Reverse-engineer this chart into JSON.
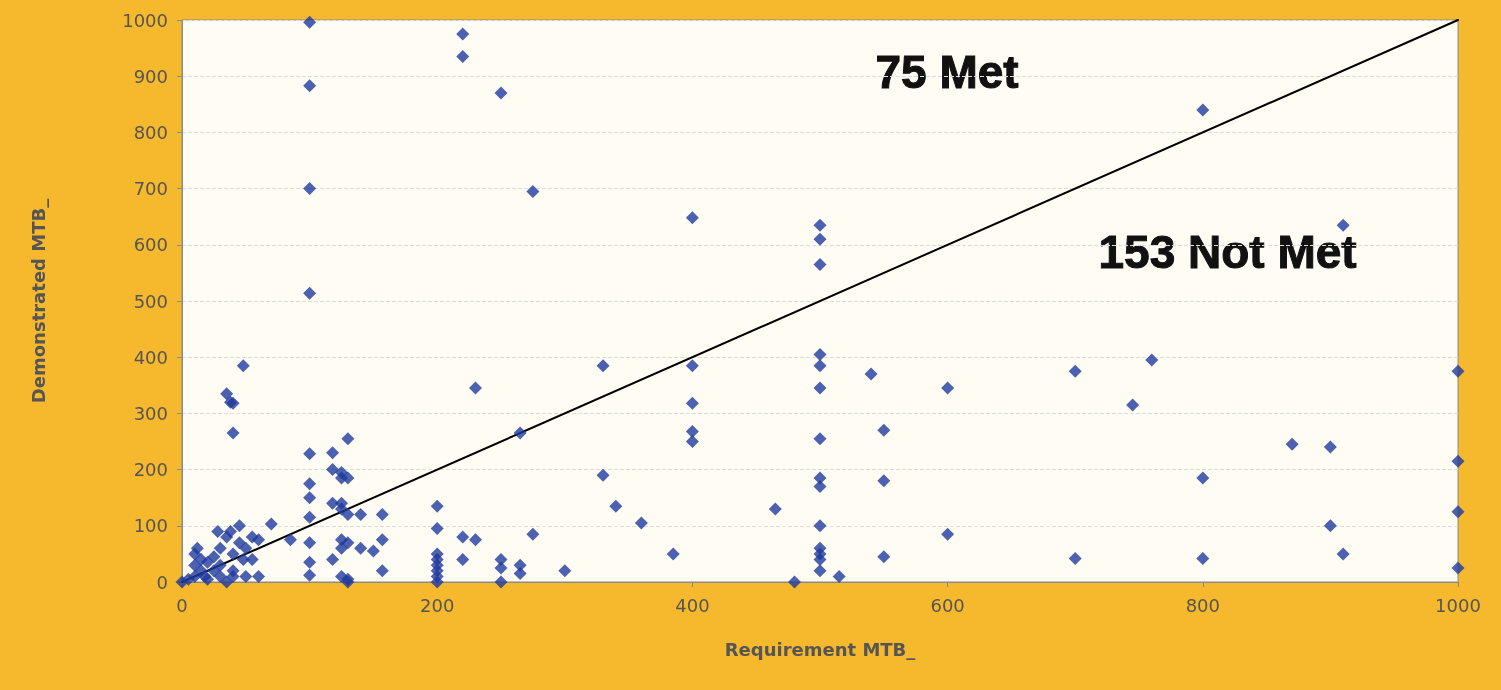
{
  "chart_data": {
    "type": "scatter",
    "xlabel": "Requirement MTB_",
    "ylabel": "Demonstrated MTB_",
    "annotations": [
      "75 Met",
      "153 Not Met"
    ],
    "xlim": [
      0,
      1000
    ],
    "xticks": [
      0,
      200,
      400,
      600,
      800,
      1000
    ],
    "ylim": [
      0,
      1000
    ],
    "yticks": [
      0,
      100,
      200,
      300,
      400,
      500,
      600,
      700,
      800,
      900,
      1000
    ],
    "grid": "y",
    "series": [
      {
        "color": "#1f3a9e",
        "marker": "diamond",
        "x": [
          0,
          5,
          10,
          10,
          10,
          12,
          15,
          15,
          18,
          20,
          20,
          25,
          25,
          28,
          30,
          30,
          30,
          35,
          35,
          38,
          40,
          40,
          40,
          45,
          45,
          48,
          50,
          50,
          55,
          55,
          60,
          60,
          35,
          38,
          40,
          40,
          48,
          70,
          85,
          100,
          100,
          100,
          100,
          100,
          100,
          100,
          100,
          100,
          100,
          100,
          118,
          118,
          118,
          118,
          125,
          125,
          125,
          125,
          125,
          125,
          125,
          130,
          130,
          130,
          130,
          130,
          130,
          140,
          140,
          150,
          157,
          157,
          157,
          200,
          200,
          200,
          200,
          200,
          200,
          200,
          200,
          220,
          220,
          220,
          220,
          230,
          230,
          250,
          250,
          250,
          250,
          265,
          265,
          265,
          275,
          275,
          300,
          330,
          330,
          340,
          360,
          385,
          400,
          400,
          400,
          400,
          400,
          465,
          480,
          500,
          500,
          500,
          500,
          500,
          500,
          500,
          500,
          500,
          500,
          500,
          500,
          500,
          500,
          515,
          540,
          550,
          550,
          550,
          600,
          600,
          700,
          700,
          745,
          760,
          800,
          800,
          800,
          870,
          900,
          900,
          910,
          910,
          1000,
          1000,
          1000,
          1000
        ],
        "values": [
          0,
          5,
          10,
          30,
          50,
          60,
          40,
          20,
          10,
          35,
          5,
          20,
          45,
          90,
          60,
          30,
          10,
          80,
          0,
          90,
          50,
          20,
          10,
          100,
          70,
          40,
          10,
          60,
          80,
          40,
          75,
          10,
          335,
          320,
          318,
          265,
          385,
          103,
          75,
          996,
          883,
          700,
          514,
          228,
          175,
          150,
          115,
          70,
          35,
          12,
          230,
          200,
          140,
          40,
          195,
          185,
          140,
          130,
          75,
          60,
          10,
          255,
          185,
          120,
          70,
          5,
          0,
          120,
          60,
          55,
          120,
          75,
          20,
          135,
          95,
          50,
          40,
          30,
          20,
          10,
          0,
          975,
          935,
          80,
          40,
          345,
          75,
          870,
          40,
          25,
          0,
          265,
          30,
          15,
          695,
          85,
          20,
          385,
          190,
          135,
          105,
          50,
          648,
          385,
          318,
          268,
          250,
          130,
          0,
          635,
          610,
          565,
          405,
          385,
          345,
          255,
          185,
          170,
          100,
          60,
          50,
          40,
          20,
          10,
          370,
          270,
          180,
          45,
          345,
          85,
          375,
          42,
          315,
          395,
          840,
          185,
          42,
          245,
          240,
          100,
          635,
          50,
          375,
          215,
          125,
          25
        ]
      },
      {
        "type": "line",
        "color": "#000000",
        "marker": "none",
        "line_style": "solid",
        "x": [
          0,
          1000
        ],
        "values": [
          0,
          1000
        ]
      }
    ]
  }
}
